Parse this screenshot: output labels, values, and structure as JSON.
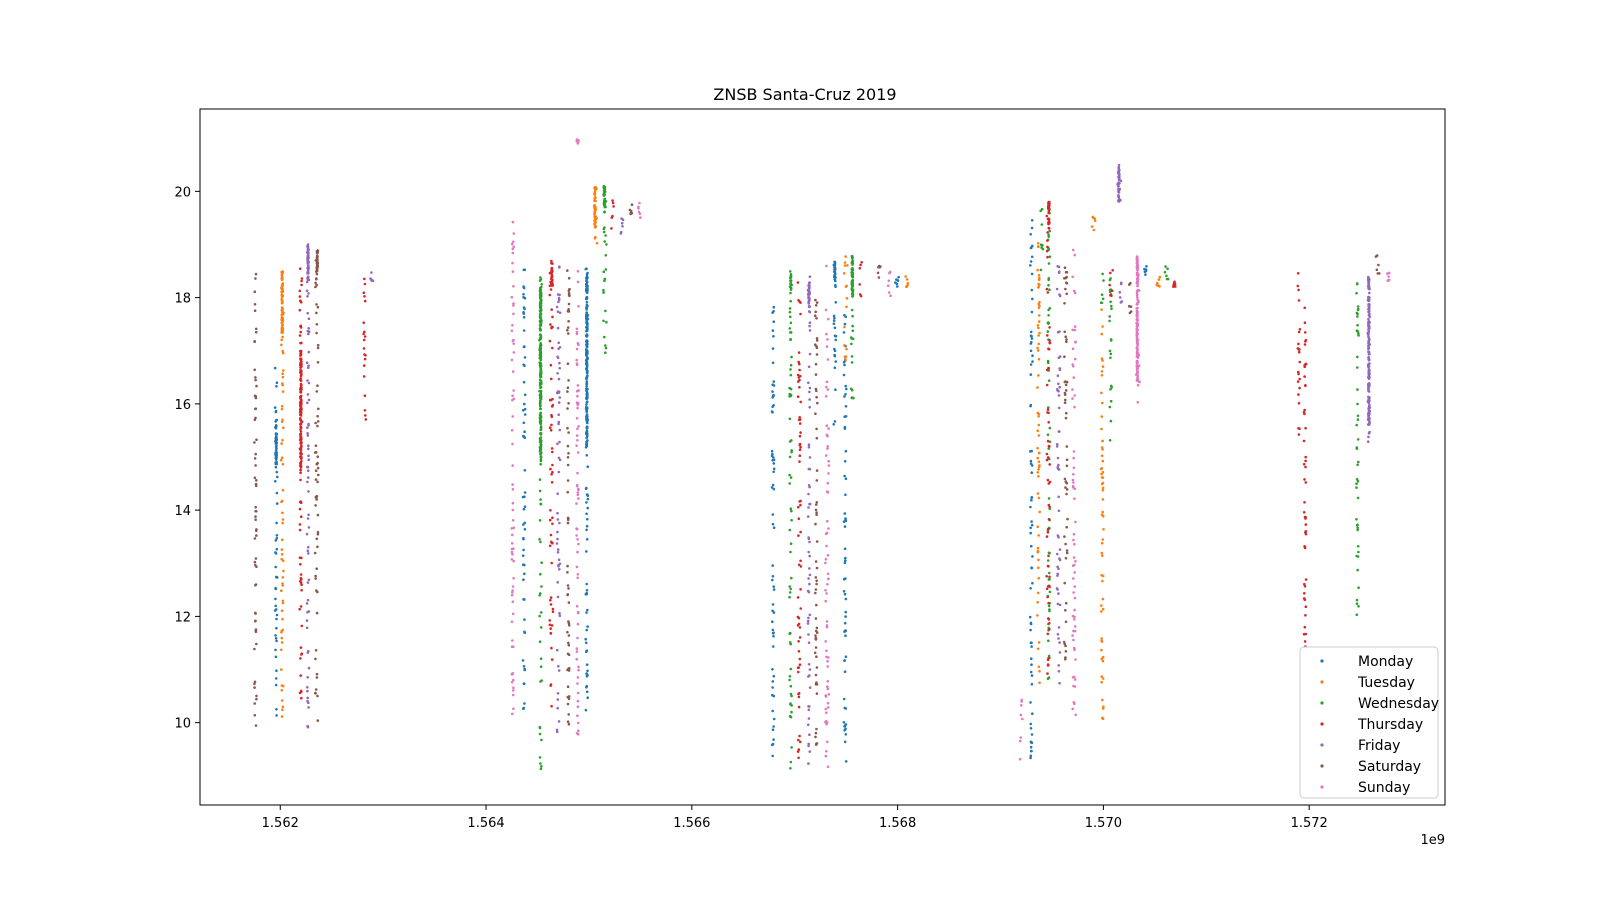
{
  "chart_data": {
    "type": "scatter",
    "title": "ZNSB Santa-Cruz 2019",
    "xlabel": "",
    "ylabel": "",
    "x_offset_label": "1e9",
    "xlim": [
      1.56122,
      1.57332
    ],
    "ylim": [
      8.45,
      21.55
    ],
    "x_ticks": [
      1.562,
      1.564,
      1.566,
      1.568,
      1.57,
      1.572
    ],
    "x_tick_labels": [
      "1.562",
      "1.564",
      "1.566",
      "1.568",
      "1.570",
      "1.572"
    ],
    "y_ticks": [
      10,
      12,
      14,
      16,
      18,
      20
    ],
    "y_tick_labels": [
      "10",
      "12",
      "14",
      "16",
      "18",
      "20"
    ],
    "grid": false,
    "legend_position": "lower-right",
    "series": [
      {
        "name": "Monday",
        "color": "#1f77b4",
        "segments": [
          [
            1.56195,
            1.56197,
            10.1,
            16.7,
            1.56196,
            14.8,
            15.6
          ],
          [
            1.56436,
            1.56438,
            10.0,
            18.6
          ],
          [
            1.56497,
            1.56499,
            10.2,
            18.7,
            1.56498,
            15.2,
            18.5
          ],
          [
            1.56678,
            1.5668,
            9.2,
            18.1
          ],
          [
            1.56738,
            1.5674,
            15.5,
            18.7,
            1.56739,
            18.3,
            18.7
          ],
          [
            1.56748,
            1.5675,
            9.2,
            18.0
          ],
          [
            1.56798,
            1.56801,
            18.2,
            18.4
          ],
          [
            1.56929,
            1.56931,
            9.3,
            19.5
          ],
          [
            1.5704,
            1.57042,
            18.4,
            18.7
          ]
        ]
      },
      {
        "name": "Tuesday",
        "color": "#ff7f0e",
        "segments": [
          [
            1.56201,
            1.56203,
            10.1,
            18.5,
            1.56202,
            17.2,
            18.5
          ],
          [
            1.56505,
            1.56508,
            19.0,
            20.1,
            1.56506,
            19.3,
            20.1
          ],
          [
            1.56748,
            1.56751,
            16.8,
            18.9
          ],
          [
            1.56808,
            1.5681,
            18.2,
            18.4
          ],
          [
            1.56936,
            1.56938,
            10.6,
            19.5
          ],
          [
            1.56989,
            1.56992,
            19.2,
            19.8
          ],
          [
            1.56998,
            1.57,
            9.3,
            17.8
          ],
          [
            1.57052,
            1.57055,
            18.2,
            18.5
          ]
        ]
      },
      {
        "name": "Wednesday",
        "color": "#2ca02c",
        "segments": [
          [
            1.56452,
            1.56454,
            9.1,
            18.4,
            1.56453,
            14.9,
            18.2
          ],
          [
            1.56514,
            1.56517,
            16.6,
            20.1,
            1.56515,
            19.6,
            20.1
          ],
          [
            1.56695,
            1.56697,
            9.1,
            18.5,
            1.56696,
            18.2,
            18.5
          ],
          [
            1.56755,
            1.56757,
            16.1,
            18.8,
            1.56756,
            18.0,
            18.8
          ],
          [
            1.56939,
            1.56941,
            18.5,
            19.7
          ],
          [
            1.56946,
            1.56948,
            10.7,
            19.7
          ],
          [
            1.56998,
            1.57,
            17.8,
            18.6
          ],
          [
            1.57006,
            1.57008,
            15.2,
            18.5
          ],
          [
            1.5706,
            1.57063,
            18.3,
            18.6
          ],
          [
            1.57246,
            1.57248,
            12.0,
            18.5
          ]
        ]
      },
      {
        "name": "Thursday",
        "color": "#d62728",
        "segments": [
          [
            1.56219,
            1.56221,
            10.2,
            18.6,
            1.5622,
            14.7,
            17.0
          ],
          [
            1.56281,
            1.56283,
            15.6,
            18.5
          ],
          [
            1.56462,
            1.56465,
            10.3,
            18.7,
            1.56464,
            18.2,
            18.7
          ],
          [
            1.56522,
            1.56524,
            19.3,
            19.9
          ],
          [
            1.56703,
            1.56706,
            9.1,
            18.4
          ],
          [
            1.56763,
            1.56765,
            18.0,
            18.8
          ],
          [
            1.56945,
            1.56948,
            10.8,
            19.8,
            1.56947,
            19.3,
            19.8
          ],
          [
            1.57006,
            1.57009,
            18.0,
            18.8
          ],
          [
            1.57068,
            1.5707,
            18.2,
            18.3
          ],
          [
            1.57189,
            1.57191,
            15.4,
            18.5
          ],
          [
            1.57195,
            1.57197,
            9.7,
            18.3
          ]
        ]
      },
      {
        "name": "Friday",
        "color": "#9467bd",
        "segments": [
          [
            1.56226,
            1.56228,
            9.6,
            19.0,
            1.56227,
            18.3,
            19.0
          ],
          [
            1.56288,
            1.5629,
            18.3,
            18.5
          ],
          [
            1.56469,
            1.56472,
            9.8,
            18.6
          ],
          [
            1.56531,
            1.56533,
            19.2,
            19.5
          ],
          [
            1.56713,
            1.56715,
            9.2,
            18.4,
            1.56714,
            17.8,
            18.3
          ],
          [
            1.56955,
            1.56958,
            10.7,
            18.6
          ],
          [
            1.57014,
            1.57017,
            19.6,
            20.5,
            1.57015,
            19.8,
            20.5
          ],
          [
            1.57016,
            1.57018,
            17.9,
            18.3
          ],
          [
            1.57257,
            1.57259,
            15.2,
            18.5,
            1.57258,
            15.6,
            18.4
          ]
        ]
      },
      {
        "name": "Saturday",
        "color": "#8c564b",
        "segments": [
          [
            1.56175,
            1.56177,
            9.8,
            18.5
          ],
          [
            1.56234,
            1.56237,
            10.0,
            18.9,
            1.56236,
            18.4,
            18.9
          ],
          [
            1.56479,
            1.56481,
            9.9,
            18.6
          ],
          [
            1.5654,
            1.56542,
            19.5,
            19.8
          ],
          [
            1.5672,
            1.56722,
            9.5,
            18.2
          ],
          [
            1.56781,
            1.56783,
            18.2,
            18.6
          ],
          [
            1.56962,
            1.56965,
            11.0,
            18.6
          ],
          [
            1.57025,
            1.57027,
            17.7,
            18.3
          ],
          [
            1.57265,
            1.57268,
            18.4,
            18.8
          ]
        ]
      },
      {
        "name": "Sunday",
        "color": "#e377c2",
        "segments": [
          [
            1.56425,
            1.56427,
            10.1,
            19.5
          ],
          [
            1.56488,
            1.5649,
            9.1,
            18.6
          ],
          [
            1.56488,
            1.5649,
            20.9,
            21.0
          ],
          [
            1.56548,
            1.5655,
            19.5,
            19.8
          ],
          [
            1.5673,
            1.56733,
            9.1,
            18.7
          ],
          [
            1.56791,
            1.56793,
            18.0,
            18.5
          ],
          [
            1.56919,
            1.56921,
            9.3,
            10.5
          ],
          [
            1.5697,
            1.56973,
            10.0,
            19.0
          ],
          [
            1.57032,
            1.57035,
            16.0,
            18.8,
            1.57033,
            16.4,
            18.8
          ],
          [
            1.57276,
            1.57278,
            18.3,
            18.5
          ]
        ]
      }
    ]
  }
}
